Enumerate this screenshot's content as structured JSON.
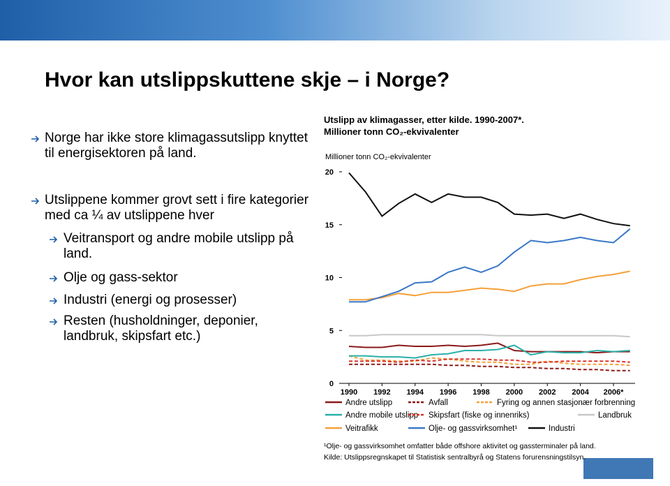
{
  "slide": {
    "title": "Hvor kan utslippskuttene skje – i Norge?",
    "bullets": [
      {
        "text": "Norge har ikke store klimagassutslipp knyttet til energisektoren på land."
      },
      {
        "text": "Utslippene kommer grovt sett i fire kategorier med ca ¼ av utslippene hver",
        "subbullets": [
          "Veitransport  og andre mobile utslipp på land.",
          "Olje og gass-sektor",
          "Industri (energi og prosesser)",
          "Resten (husholdninger, deponier, landbruk, skipsfart etc.)"
        ]
      }
    ]
  },
  "chart_data": {
    "type": "line",
    "title": "Utslipp av klimagasser, etter kilde. 1990-2007*.",
    "subtitle": "Millioner tonn CO₂-ekvivalenter",
    "y_label": "Millioner tonn CO₂-ekvivalenter",
    "x": [
      1990,
      1991,
      1992,
      1993,
      1994,
      1995,
      1996,
      1997,
      1998,
      1999,
      2000,
      2001,
      2002,
      2003,
      2004,
      2005,
      2006,
      2007
    ],
    "xlim": [
      1989.5,
      2007.5
    ],
    "xticks": [
      1990,
      1992,
      1994,
      1996,
      1998,
      2000,
      2002,
      2004,
      {
        "value": 2006,
        "label": "2006*"
      }
    ],
    "ylim": [
      0,
      20
    ],
    "yticks": [
      0,
      5,
      10,
      15,
      20
    ],
    "series": [
      {
        "name": "Andre utslipp",
        "color": "#8b1a1a",
        "dashed": false,
        "values": [
          3.5,
          3.4,
          3.4,
          3.6,
          3.5,
          3.5,
          3.6,
          3.5,
          3.6,
          3.8,
          3.1,
          3.0,
          3.0,
          3.0,
          3.0,
          2.9,
          3.0,
          3.0
        ]
      },
      {
        "name": "Avfall",
        "color": "#8b1a1a",
        "dashed": true,
        "values": [
          1.8,
          1.8,
          1.8,
          1.8,
          1.8,
          1.8,
          1.7,
          1.7,
          1.6,
          1.6,
          1.5,
          1.5,
          1.4,
          1.4,
          1.3,
          1.3,
          1.2,
          1.2
        ]
      },
      {
        "name": "Fyring og annen stasjonær forbrenning",
        "color": "#f4a13a",
        "dashed": true,
        "values": [
          2.6,
          2.2,
          2.2,
          2.1,
          2.1,
          2.4,
          2.3,
          2.1,
          2.0,
          2.0,
          1.8,
          1.8,
          2.1,
          1.9,
          1.8,
          1.8,
          1.8,
          1.7
        ]
      },
      {
        "name": "Andre mobile utslipp",
        "color": "#2ab0a8",
        "dashed": false,
        "values": [
          2.6,
          2.6,
          2.5,
          2.5,
          2.4,
          2.7,
          2.8,
          3.1,
          3.1,
          3.2,
          3.6,
          2.7,
          3.0,
          2.9,
          2.9,
          3.1,
          3.0,
          3.1
        ]
      },
      {
        "name": "Skipsfart (fiske og innenriks)",
        "color": "#d9342b",
        "dashed": true,
        "values": [
          2.1,
          2.1,
          2.1,
          2.0,
          2.2,
          2.1,
          2.3,
          2.3,
          2.3,
          2.2,
          2.2,
          2.0,
          2.0,
          2.1,
          2.1,
          2.1,
          2.1,
          2.0
        ]
      },
      {
        "name": "Landbruk",
        "color": "#c8c8c8",
        "dashed": false,
        "values": [
          4.5,
          4.5,
          4.6,
          4.6,
          4.6,
          4.6,
          4.6,
          4.6,
          4.6,
          4.5,
          4.5,
          4.5,
          4.5,
          4.5,
          4.5,
          4.5,
          4.5,
          4.4
        ]
      },
      {
        "name": "Veitrafikk",
        "color": "#f4a13a",
        "dashed": false,
        "values": [
          7.9,
          7.9,
          8.1,
          8.5,
          8.3,
          8.6,
          8.6,
          8.8,
          9.0,
          8.9,
          8.7,
          9.2,
          9.4,
          9.4,
          9.8,
          10.1,
          10.3,
          10.6
        ]
      },
      {
        "name": "Olje- og gassvirksomhet¹",
        "color": "#3a78c8",
        "dashed": false,
        "values": [
          7.7,
          7.7,
          8.2,
          8.7,
          9.5,
          9.6,
          10.5,
          11.0,
          10.5,
          11.1,
          12.4,
          13.5,
          13.3,
          13.5,
          13.8,
          13.5,
          13.3,
          14.6
        ]
      },
      {
        "name": "Industri",
        "color": "#111111",
        "dashed": false,
        "values": [
          19.9,
          18.1,
          15.8,
          17.0,
          17.9,
          17.1,
          17.9,
          17.6,
          17.6,
          17.1,
          16.0,
          15.9,
          16.0,
          15.6,
          16.0,
          15.5,
          15.1,
          14.9
        ]
      }
    ],
    "footnote": "¹Olje- og gassvirksomhet omfatter både offshore aktivitet og gassterminaler på land.",
    "source": "Kilde: Utslippsregnskapet til Statistisk sentralbyrå og Statens forurensningstilsyn."
  }
}
